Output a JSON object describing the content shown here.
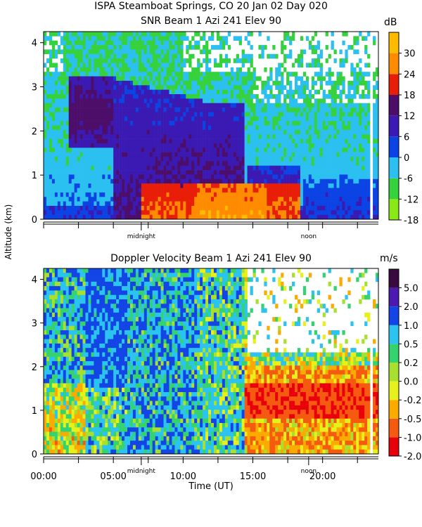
{
  "chart_data": [
    {
      "type": "heatmap",
      "title": "ISPA Steamboat Springs, CO   20 Jan 02 Day 020",
      "subtitle": "SNR Beam 1 Azi 241 Elev 90",
      "ylabel": "Altitude (km)",
      "xlabel": "",
      "ylim": [
        0,
        4.25
      ],
      "yticks": [
        "0",
        "1",
        "2",
        "3",
        "4"
      ],
      "x_markers": [
        "midnight",
        "noon"
      ],
      "colorbar": {
        "unit": "dB",
        "labels": [
          "-18",
          "-12",
          "-6",
          "0",
          "6",
          "12",
          "18",
          "24",
          "30"
        ],
        "colors": [
          "#8ae817",
          "#36d23e",
          "#2bc0f0",
          "#0b43e4",
          "#3a1ab3",
          "#4d0e6a",
          "#e81e08",
          "#ff8c00",
          "#ffbb00"
        ]
      }
    },
    {
      "type": "heatmap",
      "title": "Doppler Velocity Beam 1 Azi 241 Elev 90",
      "ylabel": "Altitude (km)",
      "xlabel": "Time (UT)",
      "ylim": [
        0,
        4.25
      ],
      "xlim_hours": [
        0,
        24
      ],
      "yticks": [
        "0",
        "1",
        "2",
        "3",
        "4"
      ],
      "xticks": [
        "00:00",
        "05:00",
        "10:00",
        "15:00",
        "20:00"
      ],
      "x_markers": [
        "midnight",
        "noon"
      ],
      "colorbar": {
        "unit": "m/s",
        "labels": [
          "-2.0",
          "-1.0",
          "-0.5",
          "-0.2",
          "0.0",
          "0.2",
          "0.5",
          "1.0",
          "2.0",
          "5.0"
        ],
        "colors": [
          "#e8000b",
          "#f55a10",
          "#fbab00",
          "#e8f01c",
          "#a8e030",
          "#34d36e",
          "#2bc3f0",
          "#1244e6",
          "#4b1ab0",
          "#3b0a40"
        ]
      }
    }
  ]
}
